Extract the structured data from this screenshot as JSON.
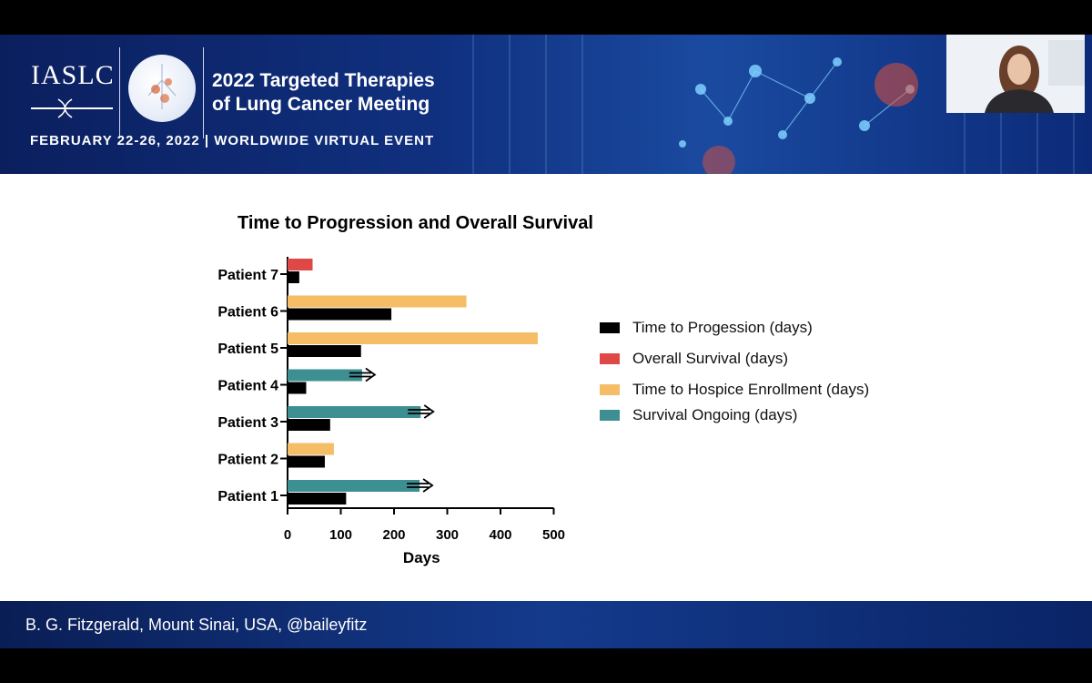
{
  "banner": {
    "org": "IASLC",
    "meeting_line1": "2022 Targeted Therapies",
    "meeting_line2": "of Lung Cancer Meeting",
    "dates": "FEBRUARY 22-26, 2022 | WORLDWIDE VIRTUAL EVENT"
  },
  "footer": {
    "credit": "B. G. Fitzgerald, Mount Sinai, USA, @baileyfitz"
  },
  "colors": {
    "progression": "#000000",
    "overall": "#e04848",
    "hospice": "#f5bd66",
    "ongoing": "#3d8f92"
  },
  "chart_data": {
    "type": "bar",
    "orientation": "horizontal",
    "title": "Time to Progression and Overall Survival",
    "xlabel": "Days",
    "ylabel": "",
    "xlim": [
      0,
      500
    ],
    "xticks": [
      "0",
      "100",
      "200",
      "300",
      "400",
      "500"
    ],
    "categories": [
      "Patient 1",
      "Patient 2",
      "Patient 3",
      "Patient 4",
      "Patient 5",
      "Patient 6",
      "Patient 7"
    ],
    "legend": [
      {
        "key": "progression",
        "label": "Time to Progession (days)"
      },
      {
        "key": "overall",
        "label": "Overall Survival  (days)"
      },
      {
        "key": "hospice",
        "label": "Time to Hospice Enrollment (days)"
      },
      {
        "key": "ongoing",
        "label": "Survival Ongoing (days)"
      }
    ],
    "series": [
      {
        "name": "Time to Progession (days)",
        "values": [
          110,
          70,
          80,
          35,
          138,
          195,
          22
        ]
      },
      {
        "name": "Survival",
        "values": [
          {
            "value": 248,
            "type": "ongoing"
          },
          {
            "value": 87,
            "type": "hospice"
          },
          {
            "value": 250,
            "type": "ongoing"
          },
          {
            "value": 140,
            "type": "ongoing"
          },
          {
            "value": 470,
            "type": "hospice"
          },
          {
            "value": 336,
            "type": "hospice"
          },
          {
            "value": 47,
            "type": "overall"
          }
        ]
      }
    ]
  }
}
